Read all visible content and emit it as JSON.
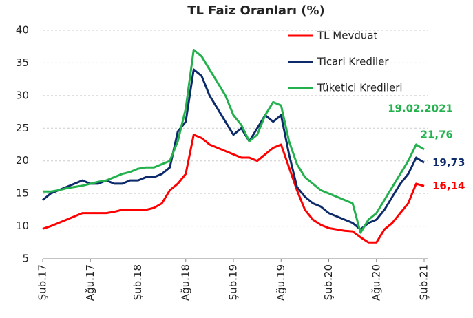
{
  "chart_data": {
    "type": "line",
    "title": "TL Faiz Oranları (%)",
    "categories": [
      "Şub.17",
      null,
      null,
      null,
      null,
      null,
      "Ağu.17",
      null,
      null,
      null,
      null,
      null,
      "Şub.18",
      null,
      null,
      null,
      null,
      null,
      "Ağu.18",
      null,
      null,
      null,
      null,
      null,
      "Şub.19",
      null,
      null,
      null,
      null,
      null,
      "Ağu.19",
      null,
      null,
      null,
      null,
      null,
      "Şub.20",
      null,
      null,
      null,
      null,
      null,
      "Ağu.20",
      null,
      null,
      null,
      null,
      null,
      "Şub.21"
    ],
    "series": [
      {
        "name": "TL Mevduat",
        "color": "#ff0000",
        "values": [
          9.6,
          10,
          10.5,
          11,
          11.5,
          12,
          12,
          12,
          12,
          12.2,
          12.5,
          12.5,
          12.5,
          12.5,
          12.8,
          13.5,
          15.5,
          16.5,
          18,
          24,
          23.5,
          22.5,
          22,
          21.5,
          21,
          20.5,
          20.5,
          20,
          21,
          22,
          22.5,
          19,
          15.5,
          12.5,
          11,
          10.2,
          9.7,
          9.5,
          9.3,
          9.2,
          8.3,
          7.5,
          7.5,
          9.5,
          10.5,
          12,
          13.5,
          16.5,
          16.14
        ],
        "value_labels": [
          null,
          null,
          null,
          null,
          null,
          null,
          null,
          null,
          null,
          null,
          null,
          null,
          null,
          null,
          null,
          null,
          null,
          null,
          null,
          null,
          null,
          null,
          null,
          null,
          null,
          null,
          null,
          null,
          null,
          null,
          null,
          null,
          null,
          null,
          null,
          null,
          null,
          null,
          null,
          null,
          null,
          null,
          null,
          null,
          null,
          null,
          null,
          null,
          "16,14"
        ]
      },
      {
        "name": "Ticari Krediler",
        "color": "#0d2b6b",
        "values": [
          14,
          15,
          15.5,
          16,
          16.5,
          17,
          16.5,
          16.5,
          17,
          16.5,
          16.5,
          17,
          17,
          17.5,
          17.5,
          18,
          19,
          24.5,
          26,
          34,
          33,
          30,
          28,
          26,
          24,
          25,
          23,
          25,
          27,
          26,
          27,
          21,
          16,
          14.5,
          13.5,
          13,
          12,
          11.5,
          11,
          10.5,
          9.5,
          10.5,
          11,
          12.5,
          14.5,
          16.5,
          18,
          20.5,
          19.73
        ],
        "value_labels": [
          null,
          null,
          null,
          null,
          null,
          null,
          null,
          null,
          null,
          null,
          null,
          null,
          null,
          null,
          null,
          null,
          null,
          null,
          null,
          null,
          null,
          null,
          null,
          null,
          null,
          null,
          null,
          null,
          null,
          null,
          null,
          null,
          null,
          null,
          null,
          null,
          null,
          null,
          null,
          null,
          null,
          null,
          null,
          null,
          null,
          null,
          null,
          null,
          "19,73"
        ]
      },
      {
        "name": "Tüketici Kredileri",
        "color": "#22b14c",
        "values": [
          15.3,
          15.3,
          15.5,
          15.8,
          16,
          16.2,
          16.5,
          16.8,
          17,
          17.5,
          18,
          18.3,
          18.8,
          19,
          19,
          19.5,
          20,
          23,
          28,
          37,
          36,
          34,
          32,
          30,
          27,
          25.5,
          23,
          24,
          27,
          29,
          28.5,
          23,
          19.5,
          17.5,
          16.5,
          15.5,
          15,
          14.5,
          14,
          13.5,
          9,
          11,
          12,
          14,
          16,
          18,
          20,
          22.5,
          21.76
        ],
        "value_labels": [
          null,
          null,
          null,
          null,
          null,
          null,
          null,
          null,
          null,
          null,
          null,
          null,
          null,
          null,
          null,
          null,
          null,
          null,
          null,
          null,
          null,
          null,
          null,
          null,
          null,
          null,
          null,
          null,
          null,
          null,
          null,
          null,
          null,
          null,
          null,
          null,
          null,
          null,
          null,
          null,
          null,
          null,
          null,
          null,
          null,
          null,
          null,
          null,
          "21,76"
        ]
      }
    ],
    "annotations": [
      "19.02.2021"
    ],
    "ylim": [
      5,
      40
    ],
    "yticks": [
      5,
      10,
      15,
      20,
      25,
      30,
      35,
      40
    ],
    "grid": true,
    "legend": "upper right"
  }
}
